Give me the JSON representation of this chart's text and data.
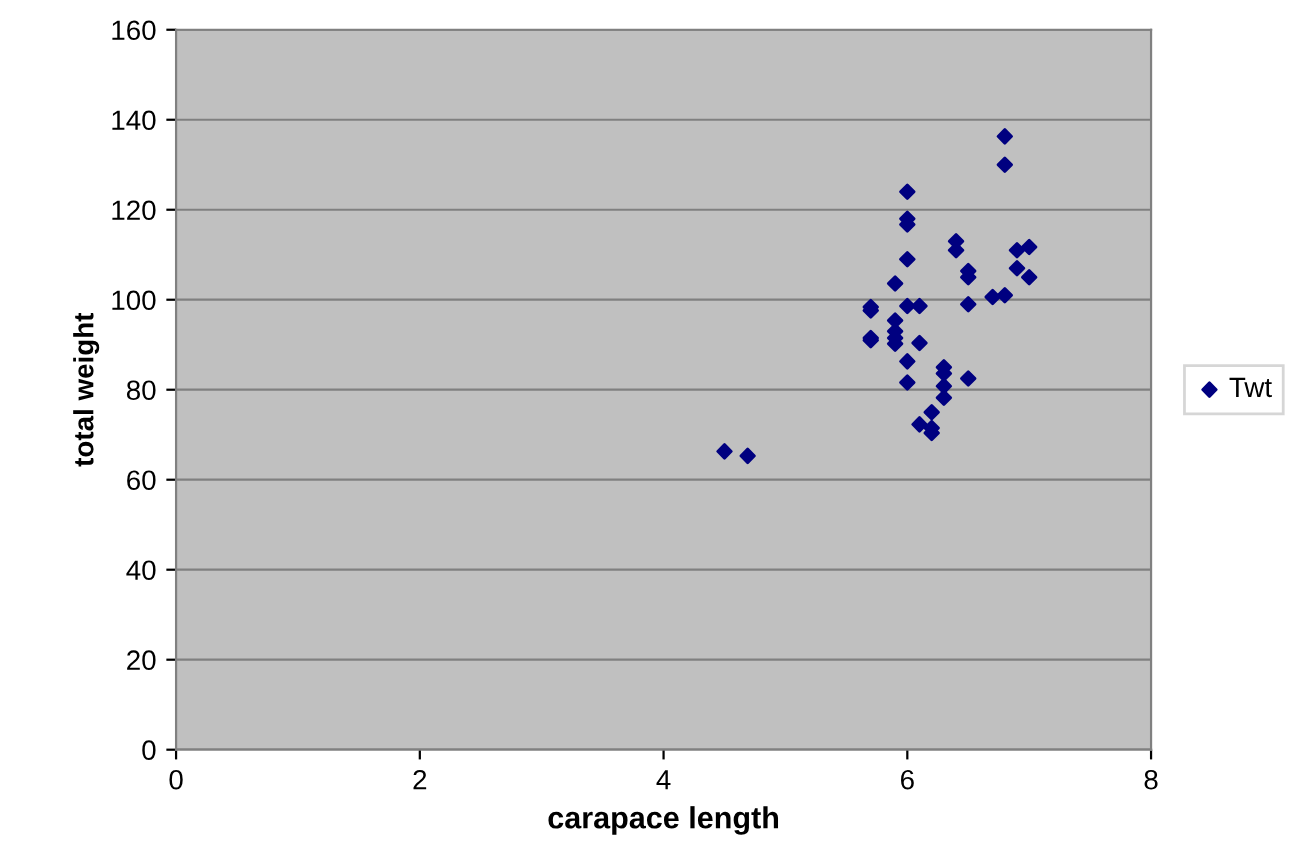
{
  "chart_data": {
    "type": "scatter",
    "xlabel": "carapace length",
    "ylabel": "total weight",
    "xlim": [
      0,
      8
    ],
    "xticks": [
      0,
      2,
      4,
      6,
      8
    ],
    "ylim": [
      0,
      160
    ],
    "yticks": [
      0,
      20,
      40,
      60,
      80,
      100,
      120,
      140,
      160
    ],
    "grid": "y",
    "legend": "right",
    "marker": "diamond",
    "series": [
      {
        "name": "Twt",
        "color": "#000080",
        "x": [
          4.5,
          4.69,
          6.0,
          6.0,
          6.0,
          6.0,
          5.9,
          5.7,
          5.7,
          6.0,
          6.1,
          5.9,
          5.9,
          5.7,
          5.7,
          5.9,
          5.9,
          6.1,
          6.0,
          6.0,
          6.3,
          6.3,
          6.3,
          6.3,
          6.5,
          6.2,
          6.1,
          6.2,
          6.2,
          6.4,
          6.4,
          6.5,
          6.5,
          6.5,
          6.7,
          6.8,
          6.8,
          6.8,
          6.9,
          7.0,
          6.9,
          7.0
        ],
        "values": [
          66.3,
          65.3,
          124,
          118,
          116.7,
          109,
          103.6,
          98.4,
          97.6,
          98.6,
          98.6,
          95.4,
          93,
          91.5,
          91,
          91.5,
          90.2,
          90.4,
          86.3,
          81.6,
          85,
          83.6,
          80.8,
          78.2,
          82.5,
          75,
          72.3,
          71.5,
          70.4,
          113,
          111,
          106.4,
          105,
          99,
          100.6,
          101,
          136.3,
          130,
          111,
          111.7,
          107,
          105
        ]
      }
    ]
  }
}
